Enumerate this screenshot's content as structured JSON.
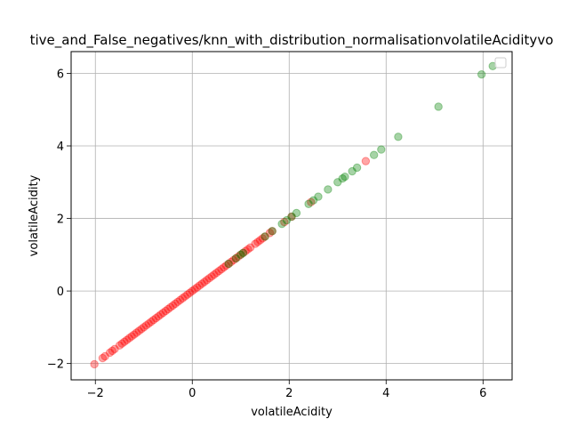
{
  "chart_data": {
    "type": "scatter",
    "title": "tive_and_False_negatives/knn_with_distribution_normalisationvolatileAcidityvo",
    "xlabel": "volatileAcidity",
    "ylabel": "volatileAcidity",
    "xlim": [
      -2.5,
      6.6
    ],
    "ylim": [
      -2.45,
      6.6
    ],
    "xticks": [
      -2,
      0,
      2,
      4,
      6
    ],
    "yticks": [
      -2,
      0,
      2,
      4,
      6
    ],
    "xtick_labels": [
      "−2",
      "0",
      "2",
      "4",
      "6"
    ],
    "ytick_labels": [
      "−2",
      "0",
      "2",
      "4",
      "6"
    ],
    "grid": true,
    "legend": "top-right",
    "series": [
      {
        "color": "#ff0000",
        "opacity": 0.35,
        "x": [
          -2.02,
          -1.85,
          -1.8,
          -1.7,
          -1.65,
          -1.6,
          -1.5,
          -1.45,
          -1.4,
          -1.35,
          -1.3,
          -1.25,
          -1.2,
          -1.15,
          -1.1,
          -1.05,
          -1.0,
          -0.95,
          -0.9,
          -0.85,
          -0.8,
          -0.75,
          -0.7,
          -0.65,
          -0.6,
          -0.55,
          -0.5,
          -0.45,
          -0.4,
          -0.35,
          -0.3,
          -0.25,
          -0.2,
          -0.15,
          -0.1,
          -0.05,
          0.0,
          0.05,
          0.1,
          0.15,
          0.2,
          0.25,
          0.3,
          0.35,
          0.4,
          0.45,
          0.5,
          0.55,
          0.6,
          0.65,
          0.7,
          0.75,
          0.8,
          0.85,
          0.9,
          0.95,
          1.0,
          1.05,
          1.1,
          1.15,
          1.2,
          1.3,
          1.35,
          1.4,
          1.45,
          1.5,
          1.6,
          1.65,
          1.9,
          2.05,
          2.45,
          3.58
        ],
        "y": [
          -2.02,
          -1.85,
          -1.8,
          -1.7,
          -1.65,
          -1.6,
          -1.5,
          -1.45,
          -1.4,
          -1.35,
          -1.3,
          -1.25,
          -1.2,
          -1.15,
          -1.1,
          -1.05,
          -1.0,
          -0.95,
          -0.9,
          -0.85,
          -0.8,
          -0.75,
          -0.7,
          -0.65,
          -0.6,
          -0.55,
          -0.5,
          -0.45,
          -0.4,
          -0.35,
          -0.3,
          -0.25,
          -0.2,
          -0.15,
          -0.1,
          -0.05,
          0.0,
          0.05,
          0.1,
          0.15,
          0.2,
          0.25,
          0.3,
          0.35,
          0.4,
          0.45,
          0.5,
          0.55,
          0.6,
          0.65,
          0.7,
          0.75,
          0.8,
          0.85,
          0.9,
          0.95,
          1.0,
          1.05,
          1.1,
          1.15,
          1.2,
          1.3,
          1.35,
          1.4,
          1.45,
          1.5,
          1.6,
          1.65,
          1.9,
          2.05,
          2.45,
          3.58
        ]
      },
      {
        "color": "#008000",
        "opacity": 0.35,
        "x": [
          0.75,
          0.9,
          1.0,
          1.05,
          1.5,
          1.65,
          1.85,
          1.95,
          2.05,
          2.15,
          2.4,
          2.5,
          2.6,
          2.8,
          3.0,
          3.1,
          3.15,
          3.3,
          3.4,
          3.75,
          3.9,
          4.25,
          5.08,
          5.97,
          6.2
        ],
        "y": [
          0.75,
          0.9,
          1.0,
          1.05,
          1.5,
          1.65,
          1.85,
          1.95,
          2.05,
          2.15,
          2.4,
          2.5,
          2.6,
          2.8,
          3.0,
          3.1,
          3.15,
          3.3,
          3.4,
          3.75,
          3.9,
          4.25,
          5.08,
          5.97,
          6.2
        ]
      }
    ]
  }
}
